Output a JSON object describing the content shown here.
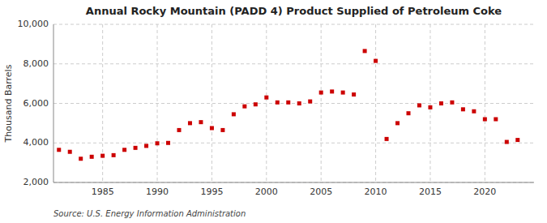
{
  "chart_data": {
    "type": "scatter",
    "title": "Annual Rocky Mountain (PADD 4) Product Supplied of Petroleum Coke",
    "ylabel": "Thousand Barrels",
    "annotations": [
      "Source: U.S. Energy Information Administration"
    ],
    "color": "#cc0000",
    "marker": "square",
    "grid": true,
    "x": [
      1981,
      1982,
      1983,
      1984,
      1985,
      1986,
      1987,
      1988,
      1989,
      1990,
      1991,
      1992,
      1993,
      1994,
      1995,
      1996,
      1997,
      1998,
      1999,
      2000,
      2001,
      2002,
      2003,
      2004,
      2005,
      2006,
      2007,
      2008,
      2009,
      2010,
      2011,
      2012,
      2013,
      2014,
      2015,
      2016,
      2017,
      2018,
      2019,
      2020,
      2021,
      2022,
      2023
    ],
    "values": [
      3650,
      3550,
      3200,
      3300,
      3350,
      3380,
      3650,
      3750,
      3850,
      3980,
      4000,
      4650,
      5000,
      5050,
      4750,
      4650,
      5450,
      5850,
      5950,
      6300,
      6050,
      6050,
      6000,
      6100,
      6550,
      6600,
      6550,
      6450,
      8650,
      8150,
      4200,
      5000,
      5500,
      5900,
      5800,
      6000,
      6050,
      5700,
      5600,
      5200,
      5200,
      4050,
      4150
    ],
    "xlim": [
      1980.5,
      2024.5
    ],
    "xticks": [
      1985,
      1990,
      1995,
      2000,
      2005,
      2010,
      2015,
      2020
    ],
    "ylim": [
      2000,
      10000
    ],
    "yticks": [
      {
        "value": 2000,
        "label": "2,000"
      },
      {
        "value": 4000,
        "label": "4,000"
      },
      {
        "value": 6000,
        "label": "6,000"
      },
      {
        "value": 8000,
        "label": "8,000"
      },
      {
        "value": 10000,
        "label": "10,000"
      }
    ]
  }
}
